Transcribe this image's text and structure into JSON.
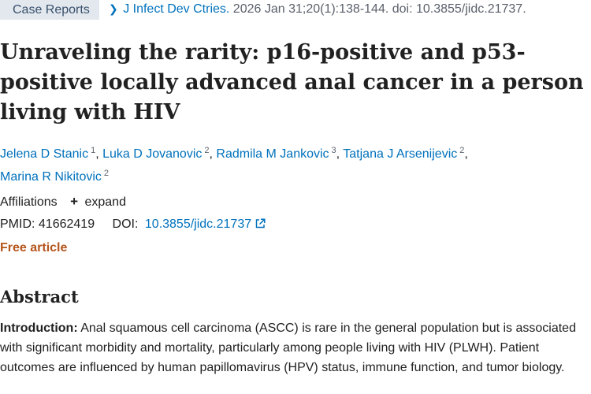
{
  "header": {
    "publication_type": "Case Reports",
    "journal": "J Infect Dev Ctries.",
    "citation": "2026 Jan 31;20(1):138-144. doi: 10.3855/jidc.21737.",
    "chevron_icon": "chevron-right-icon"
  },
  "article": {
    "title": "Unraveling the rarity: p16-positive and p53-positive locally advanced anal cancer in a person living with HIV",
    "authors": [
      {
        "name": "Jelena D Stanic",
        "aff": "1"
      },
      {
        "name": "Luka D Jovanovic",
        "aff": "2"
      },
      {
        "name": "Radmila M Jankovic",
        "aff": "3"
      },
      {
        "name": "Tatjana J Arsenijevic",
        "aff": "2"
      },
      {
        "name": "Marina R Nikitovic",
        "aff": "2"
      }
    ],
    "affiliations_label": "Affiliations",
    "expand_label": "expand",
    "pmid_label": "PMID:",
    "pmid": "41662419",
    "doi_label": "DOI:",
    "doi": "10.3855/jidc.21737",
    "free_label": "Free article"
  },
  "abstract": {
    "heading": "Abstract",
    "intro_label": "Introduction:",
    "intro_text": "Anal squamous cell carcinoma (ASCC) is rare in the general population but is associated with significant morbidity and mortality, particularly among people living with HIV (PLWH). Patient outcomes are influenced by human papillomavirus (HPV) status, immune function, and tumor biology."
  },
  "colors": {
    "link": "#0071bc",
    "free_article": "#b4551b",
    "pub_type_bg": "#e3e8ee"
  }
}
